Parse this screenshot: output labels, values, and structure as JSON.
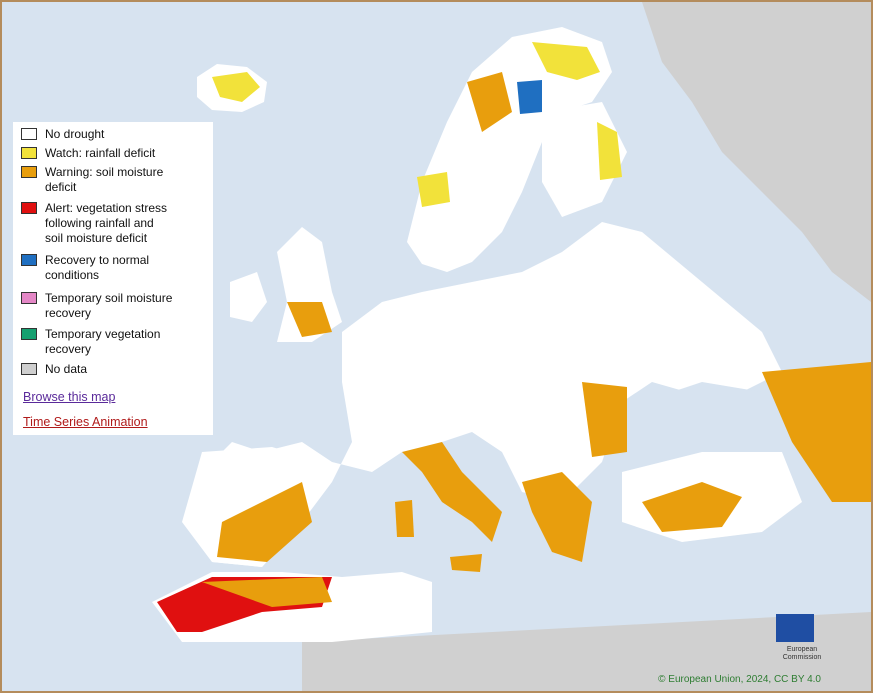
{
  "legend": {
    "items": [
      {
        "label": "No drought",
        "color": "#ffffff"
      },
      {
        "label": "Watch: rainfall deficit",
        "color": "#f2e23a"
      },
      {
        "label": "Warning: soil moisture\ndeficit",
        "color": "#e89e0d"
      },
      {
        "label": "Alert: vegetation stress\nfollowing rainfall  and\nsoil moisture  deficit",
        "color": "#e01010"
      },
      {
        "label": "Recovery to normal\nconditions",
        "color": "#1f6fc1"
      },
      {
        "label": "Temporary soil moisture\nrecovery",
        "color": "#e487c6"
      },
      {
        "label": "Temporary vegetation\nrecovery",
        "color": "#16a070"
      },
      {
        "label": "No data",
        "color": "#cfcfcf"
      }
    ],
    "browse_link": "Browse this map",
    "timeseries_link": "Time Series Animation"
  },
  "footer": {
    "copyright": "© European Union, 2024, CC BY 4.0"
  },
  "logo": {
    "text": "European\nCommission"
  },
  "colors": {
    "sea": "#d7e3f0",
    "land_nodata": "#d0d0d0",
    "land": "#ffffff",
    "frame": "#b48c5c"
  }
}
